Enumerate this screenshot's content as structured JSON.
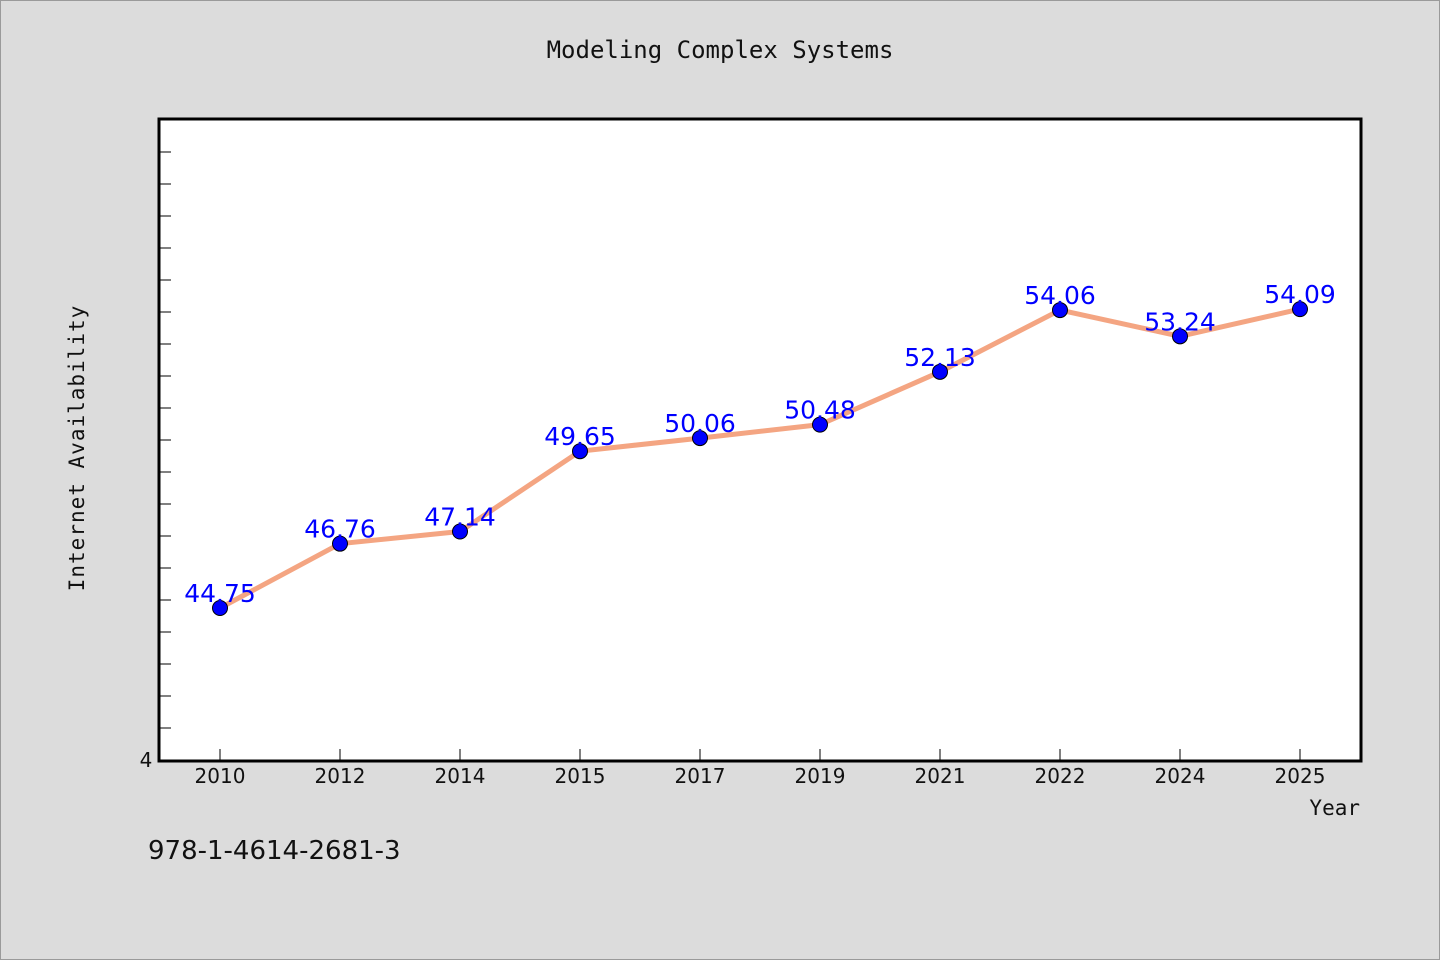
{
  "chart_data": {
    "type": "line",
    "title": "Modeling Complex Systems",
    "xlabel": "Year",
    "ylabel": "Internet Availability",
    "categories": [
      "2010",
      "2012",
      "2014",
      "2015",
      "2017",
      "2019",
      "2021",
      "2022",
      "2024",
      "2025"
    ],
    "values": [
      44.75,
      46.76,
      47.14,
      49.65,
      50.06,
      50.48,
      52.13,
      54.06,
      53.24,
      54.09
    ],
    "value_labels": [
      "44.75",
      "46.76",
      "47.14",
      "49.65",
      "50.06",
      "50.48",
      "52.13",
      "54.06",
      "53.24",
      "54.09"
    ],
    "ylim": [
      40,
      60
    ],
    "y_tick_labels": [
      "4"
    ],
    "grid": false,
    "line_color": "#f4a582",
    "marker_color": "#0000ff",
    "label_color": "#0000ff"
  },
  "footer": {
    "isbn": "978-1-4614-2681-3"
  }
}
